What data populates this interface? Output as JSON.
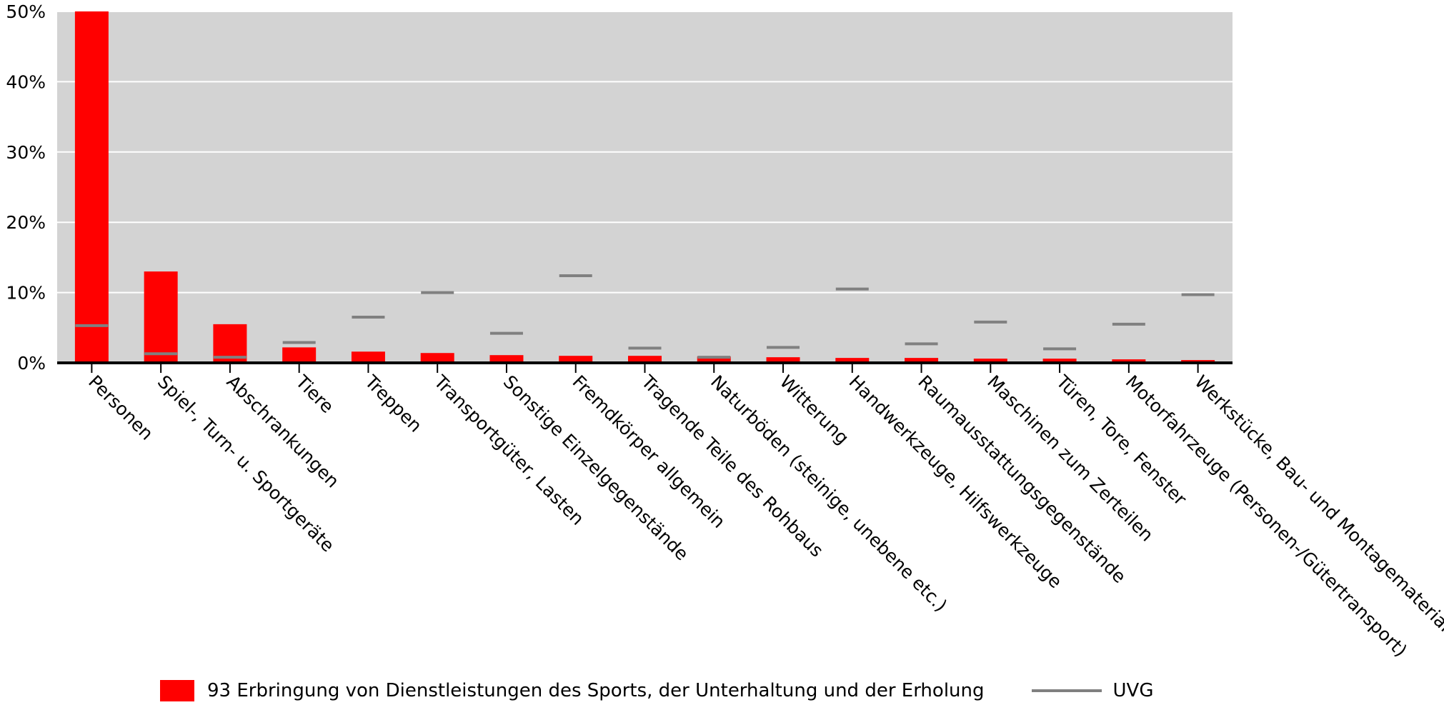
{
  "chart_data": {
    "type": "bar",
    "categories": [
      "Personen",
      "Spiel-, Turn- u. Sportgeräte",
      "Abschrankungen",
      "Tiere",
      "Treppen",
      "Transportgüter, Lasten",
      "Sonstige Einzelgegenstände",
      "Fremdkörper allgemein",
      "Tragende Teile des Rohbaus",
      "Naturböden (steinige, unebene etc.)",
      "Witterung",
      "Handwerkzeuge, Hilfswerkzeuge",
      "Raumausstattungsgegenstände",
      "Maschinen zum Zerteilen",
      "Türen, Tore, Fenster",
      "Motorfahrzeuge (Personen-/Gütertransport)",
      "Werkstücke, Bau- und Montagematerialien"
    ],
    "series": [
      {
        "name": "93 Erbringung von Dienstleistungen des Sports, der Unterhaltung und der Erholung",
        "kind": "bar",
        "color": "#ff0000",
        "values": [
          50.0,
          13.0,
          5.5,
          2.2,
          1.6,
          1.4,
          1.1,
          1.0,
          1.0,
          0.9,
          0.8,
          0.7,
          0.7,
          0.6,
          0.6,
          0.5,
          0.4
        ]
      },
      {
        "name": "UVG",
        "kind": "marker",
        "color": "#808080",
        "values": [
          5.3,
          1.3,
          0.8,
          2.9,
          6.5,
          10.0,
          4.2,
          12.4,
          2.1,
          0.8,
          2.2,
          10.5,
          2.7,
          5.8,
          2.0,
          5.5,
          9.7
        ]
      }
    ],
    "yticks": [
      "0%",
      "10%",
      "20%",
      "30%",
      "40%",
      "50%"
    ],
    "ylim": [
      0,
      50
    ],
    "grid": true,
    "legend_position": "bottom",
    "background": "#d3d3d3"
  }
}
